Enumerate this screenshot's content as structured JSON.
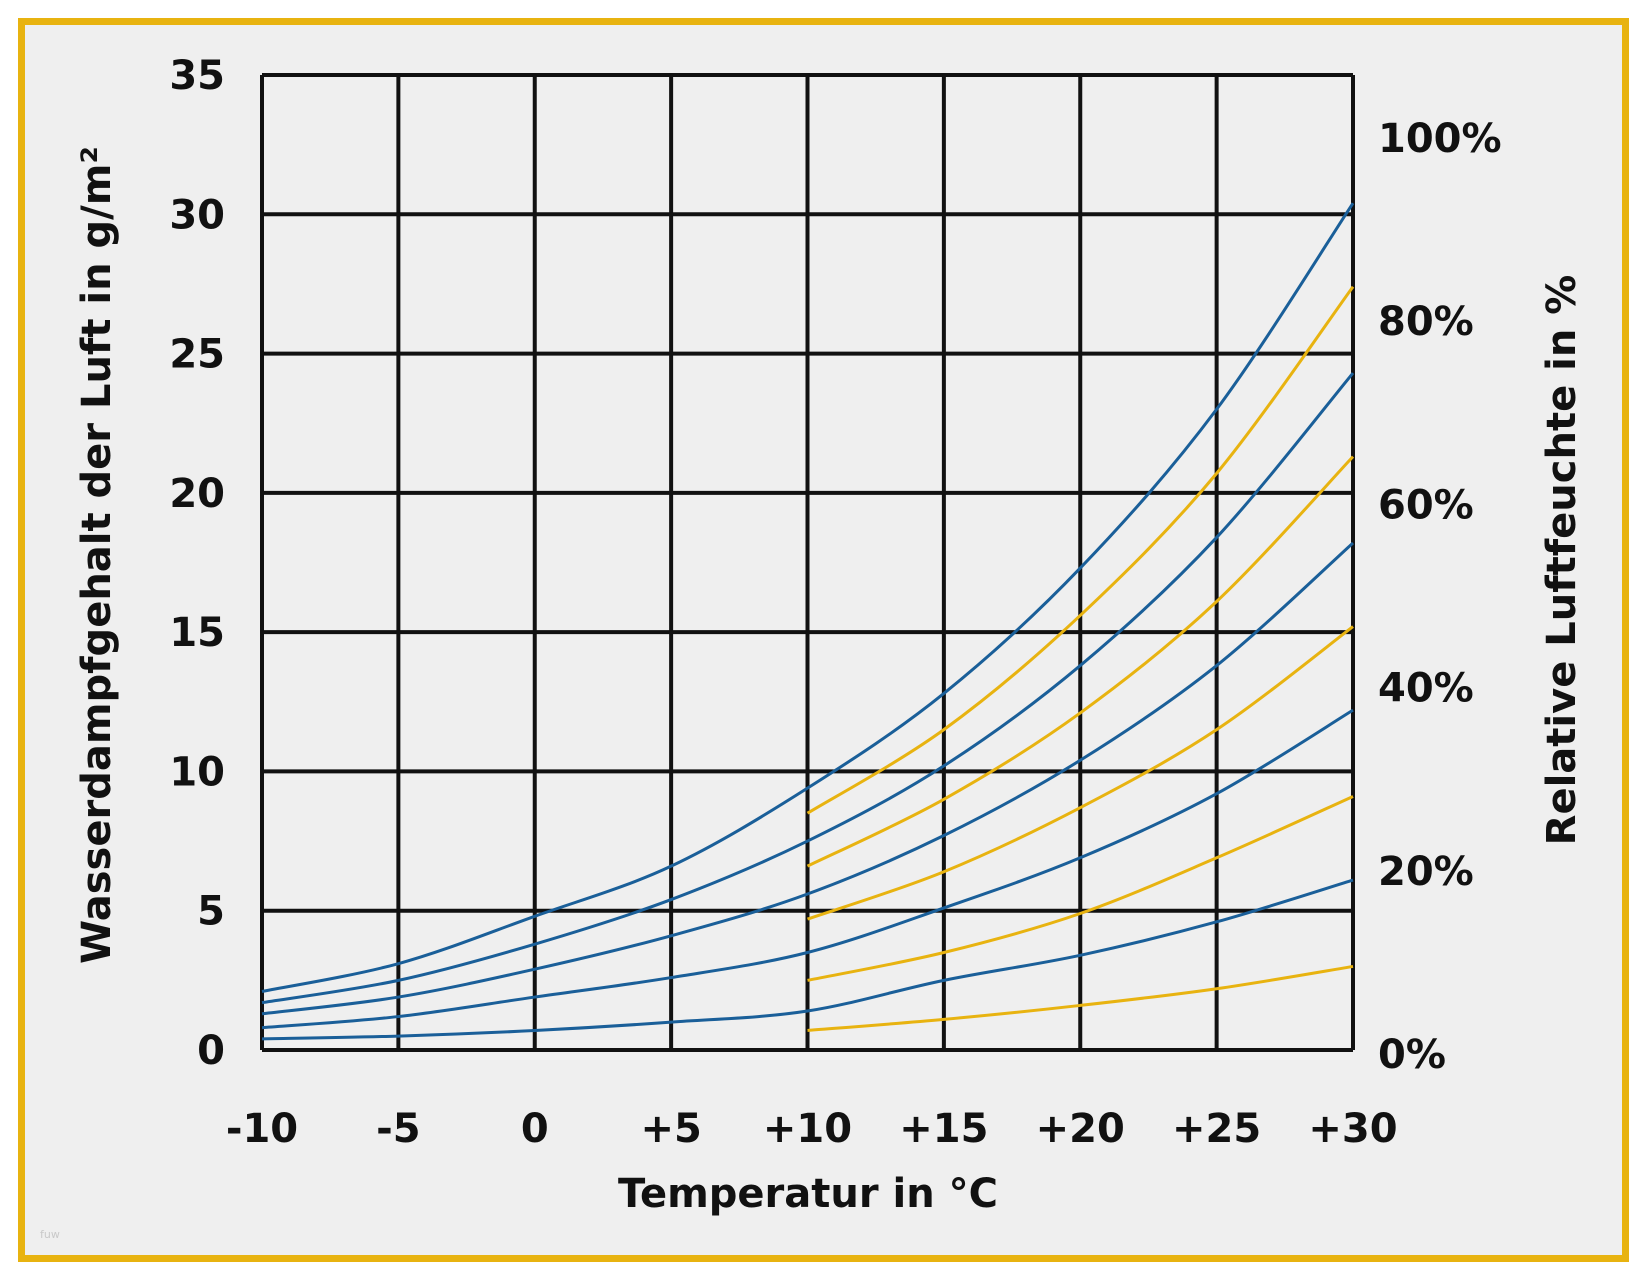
{
  "chart_data": {
    "type": "line",
    "xlabel": "Temperatur in °C",
    "ylabel": "Wasserdampfgehalt der Luft in g/m²",
    "y2label": "Relative Luftfeuchte in %",
    "xlim": [
      -10,
      30
    ],
    "ylim": [
      0,
      35
    ],
    "x_ticks": [
      -10,
      -5,
      0,
      5,
      10,
      15,
      20,
      25,
      30
    ],
    "x_tick_labels": [
      "-10",
      "-5",
      "0",
      "+5",
      "+10",
      "+15",
      "+20",
      "+25",
      "+30"
    ],
    "y_ticks": [
      0,
      5,
      10,
      15,
      20,
      25,
      30,
      35
    ],
    "y_tick_labels": [
      "0",
      "5",
      "10",
      "15",
      "20",
      "25",
      "30",
      "35"
    ],
    "y2_ticks": [
      0,
      20,
      40,
      60,
      80,
      100
    ],
    "y2_tick_labels": [
      "0%",
      "20%",
      "40%",
      "60%",
      "80%",
      "100%"
    ],
    "grid": true,
    "colors": {
      "blue": "#1a5f99",
      "yellow": "#e8b310",
      "grid": "#111111",
      "frame": "#e8b310"
    },
    "x": [
      -10,
      -5,
      0,
      5,
      10,
      15,
      20,
      25,
      30
    ],
    "series": [
      {
        "relative_humidity": 100,
        "color": "blue",
        "x_start": -10,
        "values": [
          2.1,
          3.1,
          4.8,
          6.6,
          9.4,
          12.8,
          17.3,
          23.0,
          30.4
        ]
      },
      {
        "relative_humidity": 90,
        "color": "yellow",
        "x_start": 10,
        "values": [
          null,
          null,
          null,
          null,
          8.5,
          11.5,
          15.6,
          20.7,
          27.4
        ]
      },
      {
        "relative_humidity": 80,
        "color": "blue",
        "x_start": -10,
        "values": [
          1.7,
          2.5,
          3.8,
          5.4,
          7.5,
          10.2,
          13.8,
          18.4,
          24.3
        ]
      },
      {
        "relative_humidity": 70,
        "color": "yellow",
        "x_start": 10,
        "values": [
          null,
          null,
          null,
          null,
          6.6,
          9.0,
          12.1,
          16.1,
          21.3
        ]
      },
      {
        "relative_humidity": 60,
        "color": "blue",
        "x_start": -10,
        "values": [
          1.3,
          1.9,
          2.9,
          4.1,
          5.6,
          7.7,
          10.4,
          13.8,
          18.2
        ]
      },
      {
        "relative_humidity": 50,
        "color": "yellow",
        "x_start": 10,
        "values": [
          null,
          null,
          null,
          null,
          4.7,
          6.4,
          8.7,
          11.5,
          15.2
        ]
      },
      {
        "relative_humidity": 40,
        "color": "blue",
        "x_start": -10,
        "values": [
          0.8,
          1.2,
          1.9,
          2.6,
          3.5,
          5.1,
          6.9,
          9.2,
          12.2
        ]
      },
      {
        "relative_humidity": 30,
        "color": "yellow",
        "x_start": 10,
        "values": [
          null,
          null,
          null,
          null,
          2.5,
          3.5,
          4.9,
          6.9,
          9.1
        ]
      },
      {
        "relative_humidity": 20,
        "color": "blue",
        "x_start": -10,
        "values": [
          0.4,
          0.5,
          0.7,
          1.0,
          1.4,
          2.5,
          3.4,
          4.6,
          6.1
        ]
      },
      {
        "relative_humidity": 10,
        "color": "yellow",
        "x_start": 10,
        "values": [
          null,
          null,
          null,
          null,
          0.7,
          1.1,
          1.6,
          2.2,
          3.0
        ]
      }
    ]
  }
}
